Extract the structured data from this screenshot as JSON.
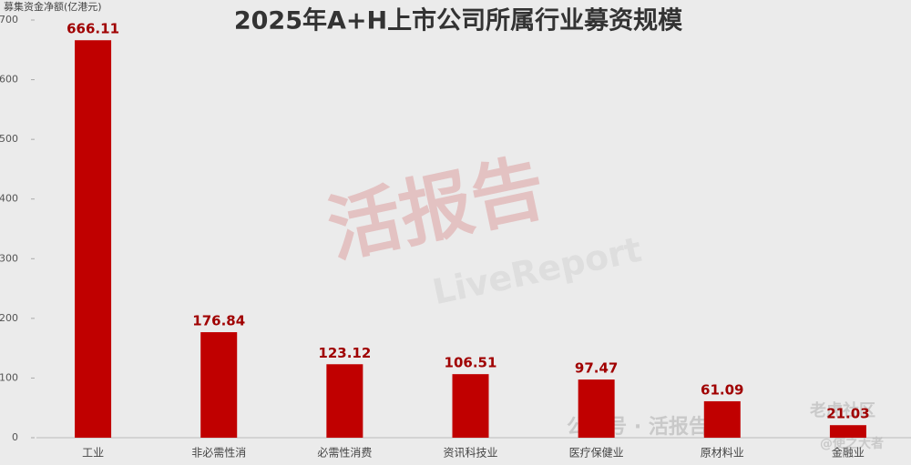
{
  "chart_data": {
    "type": "bar",
    "title": "2025年A+H上市公司所属行业募资规模",
    "y_label": "募集资金净额(亿港元)",
    "categories": [
      "工业",
      "非必需性消",
      "必需性消费",
      "资讯科技业",
      "医疗保健业",
      "原材料业",
      "金融业"
    ],
    "values": [
      666.11,
      176.84,
      123.12,
      106.51,
      97.47,
      61.09,
      21.03
    ],
    "color": "#c00000",
    "ylim": [
      0,
      700
    ],
    "yticks": [
      0,
      100,
      200,
      300,
      400,
      500,
      600,
      700
    ],
    "grid": false,
    "annotations": [
      "活报告",
      "LiveReport",
      "公众号 · 活报告",
      "老虎社区",
      "@使之大者"
    ]
  }
}
